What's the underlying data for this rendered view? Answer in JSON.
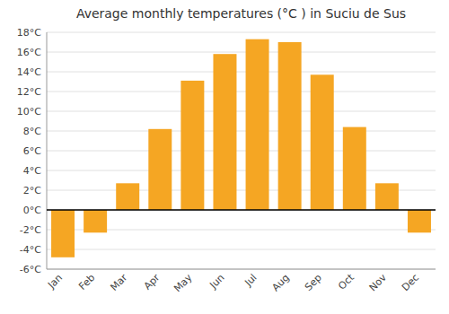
{
  "chart_data": {
    "type": "bar",
    "title": "Average monthly temperatures (°C ) in Suciu de Sus",
    "categories": [
      "Jan",
      "Feb",
      "Mar",
      "Apr",
      "May",
      "Jun",
      "Jul",
      "Aug",
      "Sep",
      "Oct",
      "Nov",
      "Dec"
    ],
    "values": [
      -4.8,
      -2.3,
      2.7,
      8.2,
      13.1,
      15.8,
      17.3,
      17.0,
      13.7,
      8.4,
      2.7,
      -2.3
    ],
    "color": "#F5A623",
    "ylim": [
      -6,
      18
    ],
    "yticks": [
      {
        "value": -6,
        "label": "-6°C"
      },
      {
        "value": -4,
        "label": "-4°C"
      },
      {
        "value": -2,
        "label": "-2°C"
      },
      {
        "value": 0,
        "label": "0°C"
      },
      {
        "value": 2,
        "label": "2°C"
      },
      {
        "value": 4,
        "label": "4°C"
      },
      {
        "value": 6,
        "label": "6°C"
      },
      {
        "value": 8,
        "label": "8°C"
      },
      {
        "value": 10,
        "label": "10°C"
      },
      {
        "value": 12,
        "label": "12°C"
      },
      {
        "value": 14,
        "label": "14°C"
      },
      {
        "value": 16,
        "label": "16°C"
      },
      {
        "value": 18,
        "label": "18°C"
      }
    ],
    "grid": true
  }
}
